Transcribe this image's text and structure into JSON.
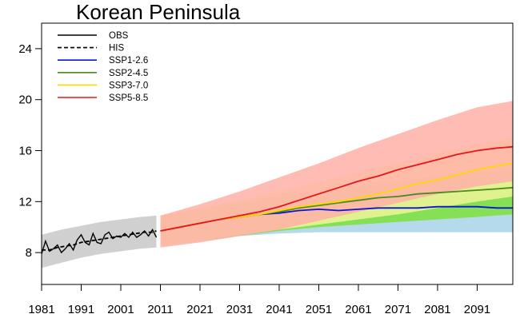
{
  "chart_data": {
    "type": "line",
    "title": "Korean Peninsula",
    "xlabel": "",
    "ylabel": "",
    "xlim": [
      1981,
      2100
    ],
    "ylim": [
      5.5,
      26
    ],
    "xticks": [
      1981,
      1991,
      2001,
      2011,
      2021,
      2031,
      2041,
      2051,
      2061,
      2071,
      2081,
      2091
    ],
    "yticks": [
      8,
      12,
      16,
      20,
      24
    ],
    "grid": false,
    "legend_position": "top-left",
    "series": [
      {
        "name": "OBS",
        "color": "#000000",
        "style": "solid",
        "x": [
          1981,
          1982,
          1983,
          1984,
          1985,
          1986,
          1987,
          1988,
          1989,
          1990,
          1991,
          1992,
          1993,
          1994,
          1995,
          1996,
          1997,
          1998,
          1999,
          2000,
          2001,
          2002,
          2003,
          2004,
          2005,
          2006,
          2007,
          2008,
          2009,
          2010
        ],
        "values": [
          7.9,
          8.9,
          8.1,
          8.3,
          8.6,
          8.0,
          8.3,
          8.7,
          8.2,
          9.0,
          9.4,
          8.8,
          8.6,
          9.5,
          8.8,
          8.7,
          9.4,
          9.6,
          9.1,
          9.3,
          9.2,
          9.5,
          9.2,
          9.6,
          9.2,
          9.4,
          9.7,
          9.3,
          9.8,
          9.2
        ]
      },
      {
        "name": "HIS",
        "color": "#000000",
        "style": "dashed",
        "x": [
          1981,
          1983,
          1985,
          1987,
          1989,
          1991,
          1993,
          1995,
          1997,
          1999,
          2001,
          2003,
          2005,
          2007,
          2009,
          2010
        ],
        "values": [
          8.2,
          8.2,
          8.4,
          8.5,
          8.6,
          8.8,
          8.9,
          9.0,
          9.1,
          9.2,
          9.3,
          9.4,
          9.5,
          9.6,
          9.6,
          9.7
        ]
      },
      {
        "name": "SSP1-2.6",
        "color": "#0a14d0",
        "style": "solid",
        "x": [
          2011,
          2016,
          2021,
          2026,
          2031,
          2036,
          2041,
          2046,
          2051,
          2056,
          2061,
          2066,
          2071,
          2076,
          2081,
          2086,
          2091,
          2096,
          2100
        ],
        "values": [
          9.7,
          10.0,
          10.3,
          10.6,
          10.8,
          11.0,
          11.1,
          11.3,
          11.4,
          11.3,
          11.4,
          11.5,
          11.5,
          11.5,
          11.6,
          11.6,
          11.6,
          11.5,
          11.5
        ]
      },
      {
        "name": "SSP2-4.5",
        "color": "#4a8a1e",
        "style": "solid",
        "x": [
          2011,
          2016,
          2021,
          2026,
          2031,
          2036,
          2041,
          2046,
          2051,
          2056,
          2061,
          2066,
          2071,
          2076,
          2081,
          2086,
          2091,
          2096,
          2100
        ],
        "values": [
          9.7,
          10.0,
          10.3,
          10.6,
          10.8,
          11.0,
          11.2,
          11.5,
          11.7,
          11.9,
          12.1,
          12.3,
          12.4,
          12.6,
          12.7,
          12.8,
          12.9,
          13.0,
          13.1
        ]
      },
      {
        "name": "SSP3-7.0",
        "color": "#ffd700",
        "style": "solid",
        "x": [
          2011,
          2016,
          2021,
          2026,
          2031,
          2036,
          2041,
          2046,
          2051,
          2056,
          2061,
          2066,
          2071,
          2076,
          2081,
          2086,
          2091,
          2096,
          2100
        ],
        "values": [
          9.7,
          10.0,
          10.3,
          10.6,
          10.8,
          11.0,
          11.3,
          11.6,
          11.8,
          12.0,
          12.3,
          12.6,
          13.0,
          13.4,
          13.7,
          14.1,
          14.5,
          14.8,
          15.0
        ]
      },
      {
        "name": "SSP5-8.5",
        "color": "#e8141c",
        "style": "solid",
        "x": [
          2011,
          2016,
          2021,
          2026,
          2031,
          2036,
          2041,
          2046,
          2051,
          2056,
          2061,
          2066,
          2071,
          2076,
          2081,
          2086,
          2091,
          2096,
          2100
        ],
        "values": [
          9.7,
          10.0,
          10.3,
          10.6,
          10.9,
          11.2,
          11.6,
          12.1,
          12.6,
          13.1,
          13.6,
          14.0,
          14.5,
          14.9,
          15.3,
          15.7,
          16.0,
          16.2,
          16.3
        ]
      }
    ],
    "bands": [
      {
        "name": "HIS-range",
        "color": "#c8c8c8",
        "x": [
          1981,
          1986,
          1991,
          1996,
          2001,
          2006,
          2010
        ],
        "lower": [
          6.8,
          7.2,
          7.6,
          7.9,
          8.1,
          8.3,
          8.4
        ],
        "upper": [
          9.4,
          9.8,
          10.1,
          10.4,
          10.6,
          10.8,
          10.9
        ]
      },
      {
        "name": "SSP1-2.6-range",
        "color": "#a8d4e8",
        "x": [
          2011,
          2021,
          2031,
          2041,
          2051,
          2061,
          2071,
          2081,
          2091,
          2100
        ],
        "lower": [
          8.5,
          8.9,
          9.3,
          9.5,
          9.6,
          9.6,
          9.6,
          9.6,
          9.6,
          9.6
        ],
        "upper": [
          10.9,
          11.3,
          11.7,
          12.0,
          12.3,
          12.5,
          12.7,
          12.8,
          12.9,
          13.0
        ]
      },
      {
        "name": "SSP2-4.5-range",
        "color": "#7ee03c",
        "x": [
          2011,
          2021,
          2031,
          2041,
          2051,
          2061,
          2071,
          2081,
          2091,
          2100
        ],
        "lower": [
          8.5,
          8.9,
          9.3,
          9.7,
          10.0,
          10.2,
          10.4,
          10.6,
          10.8,
          11.0
        ],
        "upper": [
          10.9,
          11.4,
          11.9,
          12.4,
          12.8,
          13.2,
          13.6,
          14.0,
          14.3,
          14.5
        ]
      },
      {
        "name": "SSP3-7.0-range",
        "color": "#eef599",
        "x": [
          2011,
          2021,
          2031,
          2041,
          2051,
          2061,
          2071,
          2081,
          2091,
          2100
        ],
        "lower": [
          8.5,
          8.9,
          9.4,
          9.8,
          10.2,
          10.6,
          11.0,
          11.5,
          12.0,
          12.4
        ],
        "upper": [
          10.9,
          11.5,
          12.1,
          12.8,
          13.5,
          14.3,
          15.0,
          15.8,
          16.5,
          17.0
        ]
      },
      {
        "name": "SSP5-8.5-range",
        "color": "#ffb0a8",
        "x": [
          2011,
          2021,
          2031,
          2041,
          2051,
          2061,
          2071,
          2081,
          2091,
          2100
        ],
        "lower": [
          8.4,
          8.8,
          9.3,
          9.8,
          10.5,
          11.2,
          11.9,
          12.6,
          13.2,
          13.6
        ],
        "upper": [
          10.9,
          11.8,
          12.8,
          13.9,
          15.0,
          16.2,
          17.3,
          18.4,
          19.4,
          19.9
        ]
      }
    ]
  }
}
